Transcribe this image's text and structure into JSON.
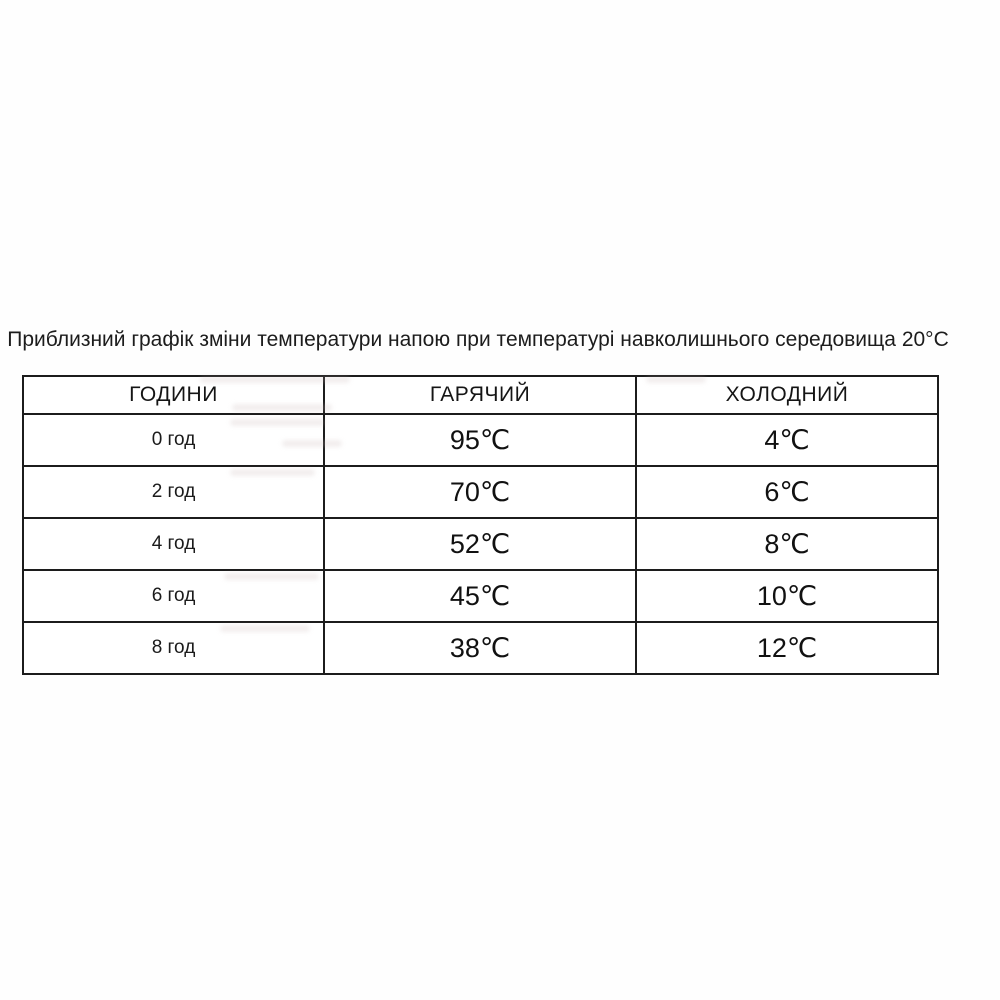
{
  "page": {
    "background_color": "#ffffff",
    "text_color": "#1a1a1a",
    "table_border_color": "#1c1c1c"
  },
  "title": "Приблизний графік зміни температури напою при температурі навколишнього середовища 20°C",
  "table": {
    "headers": {
      "hours": "ГОДИНИ",
      "hot": "ГАРЯЧИЙ",
      "cold": "ХОЛОДНИЙ"
    },
    "rows": [
      {
        "hours": "0 год",
        "hot": "95℃",
        "cold": "4℃"
      },
      {
        "hours": "2 год",
        "hot": "70℃",
        "cold": "6℃"
      },
      {
        "hours": "4 год",
        "hot": "52℃",
        "cold": "8℃"
      },
      {
        "hours": "6 год",
        "hot": "45℃",
        "cold": "10℃"
      },
      {
        "hours": "8 год",
        "hot": "38℃",
        "cold": "12℃"
      }
    ]
  },
  "chart_data": {
    "type": "table",
    "title": "Приблизний графік зміни температури напою при температурі навколишнього середовища 20°C",
    "columns": [
      "ГОДИНИ",
      "ГАРЯЧИЙ",
      "ХОЛОДНИЙ"
    ],
    "rows": [
      [
        "0 год",
        "95℃",
        "4℃"
      ],
      [
        "2 год",
        "70℃",
        "6℃"
      ],
      [
        "4 год",
        "52℃",
        "8℃"
      ],
      [
        "6 год",
        "45℃",
        "10℃"
      ],
      [
        "8 год",
        "38℃",
        "12℃"
      ]
    ],
    "hours": [
      0,
      2,
      4,
      6,
      8
    ],
    "series": [
      {
        "name": "ГАРЯЧИЙ",
        "values_celsius": [
          95,
          70,
          52,
          45,
          38
        ]
      },
      {
        "name": "ХОЛОДНИЙ",
        "values_celsius": [
          4,
          6,
          8,
          10,
          12
        ]
      }
    ],
    "ambient_temperature_celsius": 20,
    "units": "°C",
    "grid": true,
    "legend_position": "none"
  }
}
